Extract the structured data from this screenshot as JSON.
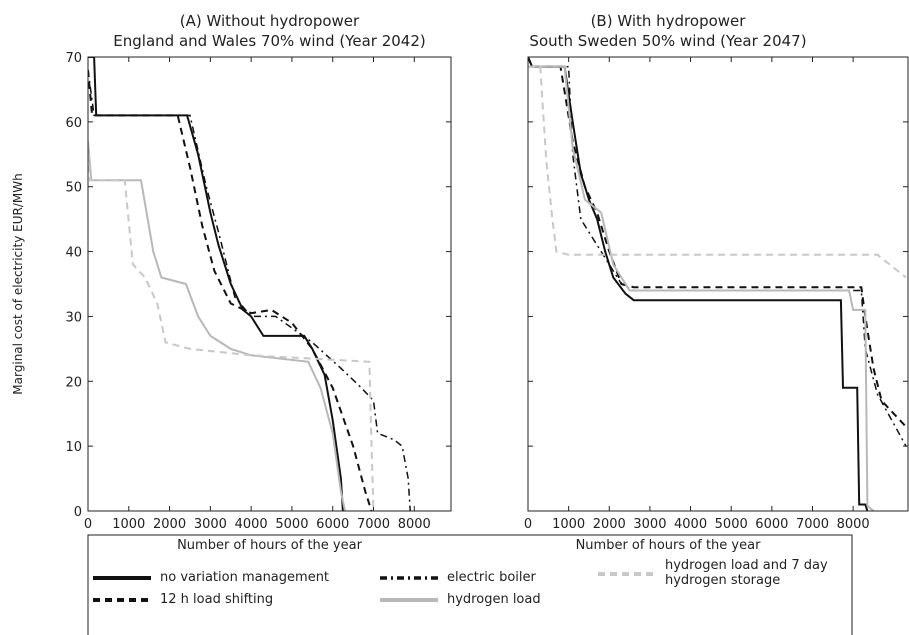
{
  "chart_data": [
    {
      "type": "line",
      "title": "(A) Without hydropower",
      "subtitle": "England and Wales 70% wind (Year 2042)",
      "x_label": "Number of hours of the year",
      "y_label": "Marginal cost of electricity EUR/MWh",
      "xlim": [
        0,
        8900
      ],
      "ylim": [
        0,
        70
      ],
      "xticks": [
        0,
        1000,
        2000,
        3000,
        4000,
        5000,
        6000,
        7000,
        8000
      ],
      "yticks": [
        0,
        10,
        20,
        30,
        40,
        50,
        60,
        70
      ],
      "series": [
        {
          "name": "no variation management",
          "color": "#111111",
          "linestyle": "solid",
          "linewidth": 2,
          "x": [
            0,
            150,
            200,
            2430,
            2700,
            3000,
            3200,
            3500,
            3800,
            4000,
            4300,
            5300,
            5500,
            5800,
            6000,
            6200,
            6250
          ],
          "values": [
            70,
            70,
            61,
            61,
            55,
            46,
            41,
            35,
            31,
            30,
            27,
            27,
            25,
            21,
            14,
            5,
            0
          ]
        },
        {
          "name": "12 h load shifting",
          "color": "#111111",
          "linestyle": "dashed",
          "linewidth": 2,
          "x": [
            0,
            100,
            2200,
            2500,
            2800,
            3100,
            3500,
            4000,
            4500,
            5000,
            5500,
            6000,
            6500,
            6800,
            6950
          ],
          "values": [
            68,
            61,
            61,
            53,
            44,
            37,
            32,
            30.5,
            31,
            29,
            25,
            19,
            10,
            3,
            0
          ]
        },
        {
          "name": "electric boiler",
          "color": "#111111",
          "linestyle": "dashdot",
          "linewidth": 1.5,
          "x": [
            0,
            150,
            2500,
            2900,
            3200,
            3600,
            4000,
            4600,
            5500,
            6200,
            6700,
            7000,
            7100,
            7500,
            7700,
            7850,
            7900
          ],
          "values": [
            68,
            61,
            61,
            50,
            43,
            33,
            30,
            30,
            26,
            22,
            19,
            17,
            12,
            11,
            10,
            5,
            0
          ]
        },
        {
          "name": "hydrogen load",
          "color": "#b8b8b8",
          "linestyle": "solid",
          "linewidth": 2,
          "x": [
            0,
            80,
            1300,
            1600,
            1800,
            2400,
            2700,
            3000,
            3500,
            4000,
            5400,
            5700,
            6000,
            6200,
            6300
          ],
          "values": [
            57,
            51,
            51,
            40,
            36,
            35,
            30,
            27,
            25,
            24,
            23,
            19,
            12,
            3,
            0
          ]
        },
        {
          "name": "hydrogen load and 7 day hydrogen storage",
          "color": "#c8c8c8",
          "linestyle": "dashed",
          "linewidth": 2,
          "x": [
            0,
            50,
            900,
            1100,
            1400,
            1700,
            1900,
            2500,
            4000,
            5500,
            6900,
            6950,
            7000
          ],
          "values": [
            57,
            51,
            51,
            38,
            36,
            32,
            26,
            25,
            24,
            23.5,
            23,
            10,
            0
          ]
        }
      ]
    },
    {
      "type": "line",
      "title": "(B) With hydropower",
      "subtitle": "South Sweden 50% wind (Year 2047)",
      "x_label": "Number of hours of the year",
      "xlim": [
        0,
        9350
      ],
      "ylim": [
        0,
        70
      ],
      "xticks": [
        0,
        1000,
        2000,
        3000,
        4000,
        5000,
        6000,
        7000,
        8000
      ],
      "yticks": [
        0,
        10,
        20,
        30,
        40,
        50,
        60,
        70
      ],
      "series": [
        {
          "name": "no variation management",
          "color": "#111111",
          "linestyle": "solid",
          "linewidth": 2,
          "x": [
            0,
            100,
            900,
            1100,
            1300,
            1500,
            1700,
            1900,
            2100,
            2400,
            2600,
            7700,
            7750,
            8100,
            8150,
            8300,
            8350
          ],
          "values": [
            70,
            68.5,
            68.5,
            60,
            52,
            48,
            45,
            40,
            36,
            33.5,
            32.5,
            32.5,
            19,
            19,
            1,
            1,
            0
          ]
        },
        {
          "name": "12 h load shifting",
          "color": "#111111",
          "linestyle": "dashed",
          "linewidth": 2,
          "x": [
            0,
            100,
            800,
            1100,
            1400,
            1700,
            2000,
            2300,
            2600,
            8200,
            8300,
            8500,
            8700,
            9300
          ],
          "values": [
            70,
            68.5,
            68.5,
            57,
            50,
            46,
            40,
            35,
            34.5,
            34.5,
            30,
            22,
            17,
            13
          ]
        },
        {
          "name": "electric boiler",
          "color": "#111111",
          "linestyle": "dashdot",
          "linewidth": 1.5,
          "x": [
            0,
            100,
            1000,
            1100,
            1300,
            1600,
            2000,
            2300,
            2600,
            8200,
            8300,
            8600,
            9300
          ],
          "values": [
            70,
            68.5,
            68.5,
            55,
            45,
            42,
            38,
            35,
            34,
            34,
            25,
            18,
            10
          ]
        },
        {
          "name": "hydrogen load",
          "color": "#b8b8b8",
          "linestyle": "solid",
          "linewidth": 2,
          "x": [
            0,
            900,
            1100,
            1400,
            1800,
            2100,
            2500,
            7900,
            8000,
            8300,
            8350,
            8500
          ],
          "values": [
            68.5,
            68.5,
            56,
            48,
            46,
            38,
            34,
            34,
            31,
            31,
            0.8,
            0
          ]
        },
        {
          "name": "hydrogen load and 7 day hydrogen storage",
          "color": "#c8c8c8",
          "linestyle": "dashed",
          "linewidth": 2,
          "x": [
            0,
            300,
            450,
            600,
            700,
            1000,
            8600,
            8900,
            9300
          ],
          "values": [
            68.5,
            68.5,
            54,
            45,
            40,
            39.5,
            39.5,
            38,
            36
          ]
        }
      ]
    }
  ]
}
